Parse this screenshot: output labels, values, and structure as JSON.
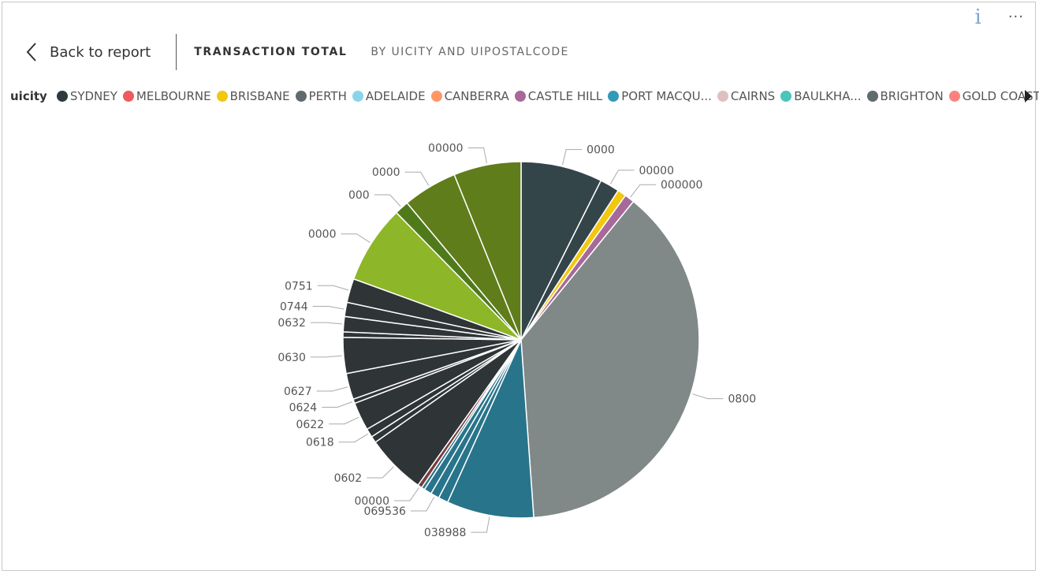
{
  "header": {
    "back_label": "Back to report",
    "title": "TRANSACTION TOTAL",
    "subtitle": "BY UICITY AND UIPOSTALCODE"
  },
  "top_icons": {
    "info_glyph": "i",
    "more_glyph": "···"
  },
  "legend": {
    "title": "uicity",
    "items": [
      {
        "label": "SYDNEY",
        "color": "#2f3a3f"
      },
      {
        "label": "MELBOURNE",
        "color": "#f05a5a"
      },
      {
        "label": "BRISBANE",
        "color": "#f2c80f"
      },
      {
        "label": "PERTH",
        "color": "#5f6b6d"
      },
      {
        "label": "ADELAIDE",
        "color": "#8ad4eb"
      },
      {
        "label": "CANBERRA",
        "color": "#fe9666"
      },
      {
        "label": "CASTLE HILL",
        "color": "#a66999"
      },
      {
        "label": "PORT MACQU...",
        "color": "#3599b8"
      },
      {
        "label": "CAIRNS",
        "color": "#dfbfbf"
      },
      {
        "label": "BAULKHA...",
        "color": "#4ac5bb"
      },
      {
        "label": "BRIGHTON",
        "color": "#5f6b6d"
      },
      {
        "label": "GOLD COAST",
        "color": "#fb8281"
      }
    ]
  },
  "chart_data": {
    "type": "pie",
    "title": "TRANSACTION TOTAL BY UICITY AND UIPOSTALCODE",
    "legend_title": "uicity",
    "legend_position": "top",
    "slices": [
      {
        "label": "0000",
        "value": 7.5,
        "color": "#34454a"
      },
      {
        "label": "00000",
        "value": 1.8,
        "color": "#34454a"
      },
      {
        "label": "",
        "value": 0.8,
        "color": "#f2c80f"
      },
      {
        "label": "000000",
        "value": 0.9,
        "color": "#a66999"
      },
      {
        "label": "0800",
        "value": 38.5,
        "color": "#808888"
      },
      {
        "label": "038988",
        "value": 8.0,
        "color": "#28748b"
      },
      {
        "label": "",
        "value": 0.9,
        "color": "#28748b"
      },
      {
        "label": "069536",
        "value": 0.8,
        "color": "#28748b"
      },
      {
        "label": "",
        "value": 0.7,
        "color": "#28748b"
      },
      {
        "label": "",
        "value": 0.3,
        "color": "#28748b"
      },
      {
        "label": "00000",
        "value": 0.4,
        "color": "#7a3b3b"
      },
      {
        "label": "0602",
        "value": 5.5,
        "color": "#2f3436"
      },
      {
        "label": "",
        "value": 0.6,
        "color": "#2f3436"
      },
      {
        "label": "0618",
        "value": 0.8,
        "color": "#2f3436"
      },
      {
        "label": "0622",
        "value": 2.6,
        "color": "#2f3436"
      },
      {
        "label": "0624",
        "value": 0.4,
        "color": "#2f3436"
      },
      {
        "label": "0627",
        "value": 2.4,
        "color": "#2f3436"
      },
      {
        "label": "0630",
        "value": 3.3,
        "color": "#2f3436"
      },
      {
        "label": "",
        "value": 0.5,
        "color": "#2f3436"
      },
      {
        "label": "0632",
        "value": 1.4,
        "color": "#2f3436"
      },
      {
        "label": "0744",
        "value": 1.3,
        "color": "#2f3436"
      },
      {
        "label": "0751",
        "value": 2.2,
        "color": "#2f3436"
      },
      {
        "label": "0000",
        "value": 7.2,
        "color": "#8db629"
      },
      {
        "label": "000",
        "value": 1.3,
        "color": "#4f7a1b"
      },
      {
        "label": "0000",
        "value": 5.0,
        "color": "#5f7d1a"
      },
      {
        "label": "00000",
        "value": 6.2,
        "color": "#5f7d1a"
      }
    ]
  }
}
